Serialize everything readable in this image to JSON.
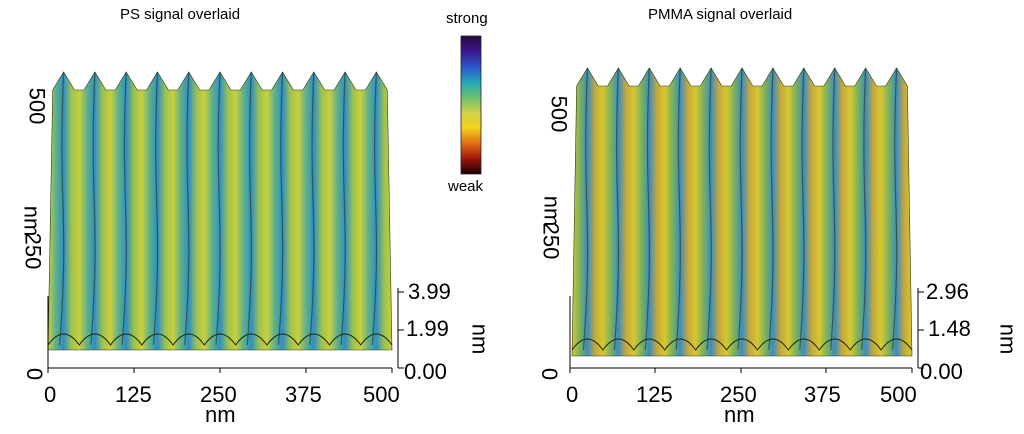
{
  "colorbar": {
    "top_label": "strong",
    "bottom_label": "weak",
    "stops": [
      "#2a0840",
      "#3b1690",
      "#2a55c8",
      "#22a6b8",
      "#6cc070",
      "#cfd24a",
      "#f2d21a",
      "#e07018",
      "#a0160c",
      "#1a0000"
    ]
  },
  "panels": [
    {
      "title": "PS signal overlaid",
      "x_ticks": [
        "0",
        "125",
        "250",
        "375",
        "500"
      ],
      "x_unit": "nm",
      "y_ticks": [
        "0",
        "250",
        "500"
      ],
      "y_unit": "nm",
      "z_ticks": [
        "0.00",
        "1.99",
        "3.99"
      ],
      "z_unit": "nm",
      "ridges": 11
    },
    {
      "title": "PMMA signal overlaid",
      "x_ticks": [
        "0",
        "125",
        "250",
        "375",
        "500"
      ],
      "x_unit": "nm",
      "y_ticks": [
        "0",
        "250",
        "500"
      ],
      "y_unit": "nm",
      "z_ticks": [
        "0.00",
        "1.48",
        "2.96"
      ],
      "z_unit": "nm",
      "ridges": 11
    }
  ]
}
